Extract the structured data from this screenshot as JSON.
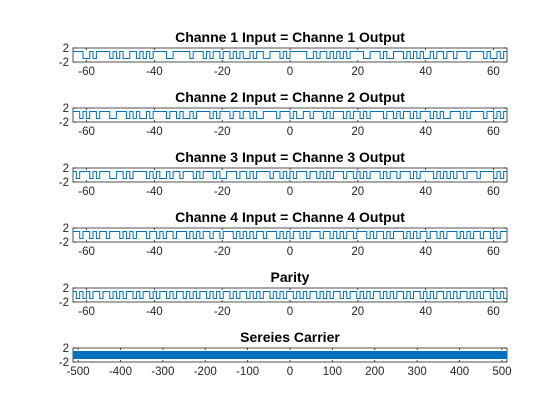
{
  "colors": {
    "line": "#0072bd",
    "axes": "#262626",
    "background": "#ffffff"
  },
  "chart_data": [
    {
      "type": "line",
      "step": true,
      "title": "Channe 1 Input = Channe 1 Output",
      "xlim": [
        -64,
        64
      ],
      "ylim": [
        -2,
        2
      ],
      "xticks": [
        -60,
        -40,
        -20,
        0,
        20,
        40,
        60
      ],
      "yticks": [
        -2,
        2
      ],
      "bits": "1110010111101010011010101111001111101110101101101010010110011101011111001011010101011110011101001110101010010110110111011110100101"
    },
    {
      "type": "line",
      "step": true,
      "title": "Channe 2 Input = Channe 2 Output",
      "xlim": [
        -64,
        64
      ],
      "ylim": [
        -2,
        2
      ],
      "xticks": [
        -60,
        -40,
        -20,
        0,
        20,
        40,
        60
      ],
      "yticks": [
        -2,
        2
      ],
      "bits": "1101011011100111010100101111011010010111101011101101101001111011101001101110101110101101011110110101101011101010011101011110110101"
    },
    {
      "type": "line",
      "step": true,
      "title": "Channe 3 Input = Channe 3 Output",
      "xlim": [
        -64,
        64
      ],
      "ylim": [
        -2,
        2
      ],
      "xticks": [
        -60,
        -40,
        -20,
        0,
        20,
        40,
        60
      ],
      "yticks": [
        -2,
        2
      ],
      "bits": "1011101011100110101111010100101101110101110100111011010111101101010111011010101110110101011101011011101011110101010110111011110101"
    },
    {
      "type": "line",
      "step": true,
      "title": "Channe 4 Input = Channe 4 Output",
      "xlim": [
        -64,
        64
      ],
      "ylim": [
        -2,
        2
      ],
      "xticks": [
        -60,
        -40,
        -20,
        0,
        20,
        40,
        60
      ],
      "yticks": [
        -2,
        2
      ],
      "bits": "1101101011011101010111011010110111010101101101110101010110111010101101011101101010110111010110101110101011011010111010101101101011"
    },
    {
      "type": "line",
      "step": true,
      "title": "Parity",
      "xlim": [
        -64,
        64
      ],
      "ylim": [
        -2,
        2
      ],
      "xticks": [
        -60,
        -40,
        -20,
        0,
        20,
        40,
        60
      ],
      "yticks": [
        -2,
        2
      ],
      "bits": "1010101101101010110101101011010110101011010101101011010101101010110101011010101101011010101101010110101101010110101011010101101010"
    },
    {
      "type": "line",
      "step": true,
      "title": "Sereies Carrier",
      "xlim": [
        -512,
        512
      ],
      "ylim": [
        -2,
        2
      ],
      "xticks": [
        -500,
        -400,
        -300,
        -200,
        -100,
        0,
        100,
        200,
        300,
        400,
        500
      ],
      "yticks": [
        -2,
        2
      ],
      "bits": "1010110101011010101011010110101010110101010110101101010101101011010101011010110101010110101101010101101011010101011010110101010110101101010101101011010101011010110101010110101101010101101011010101011010110101010110101101010101101011010101011010110101010110101101010101101011010101011010110101010110101101010101101011010101011010110101010110101101010101101011010101011010110101010110101101010101101011010101011010110101010110101101010101101011010101011010110101010110101101010101101011010101011010110101010110101101010101101011010101011010110101010110101101010101101011010101011010110101010110101101010101101011010101011010110101010110101101010101101011010101011010110101010110101101010101101011010101011010110101010110101101010101101011010101011010110101010110101101010101101011010101011010110101010110101101010101101011010101011010110101010110101101010101101011010101011010110101010110101101010101101011010101011010110101010110101101010101101011010101011010110101010110101101010101101011010101011010110101010110101101010101101011010101011010110101010110101101010101101011010101011010110101010110101101010101101011010101011010110101010110101101"
    }
  ]
}
